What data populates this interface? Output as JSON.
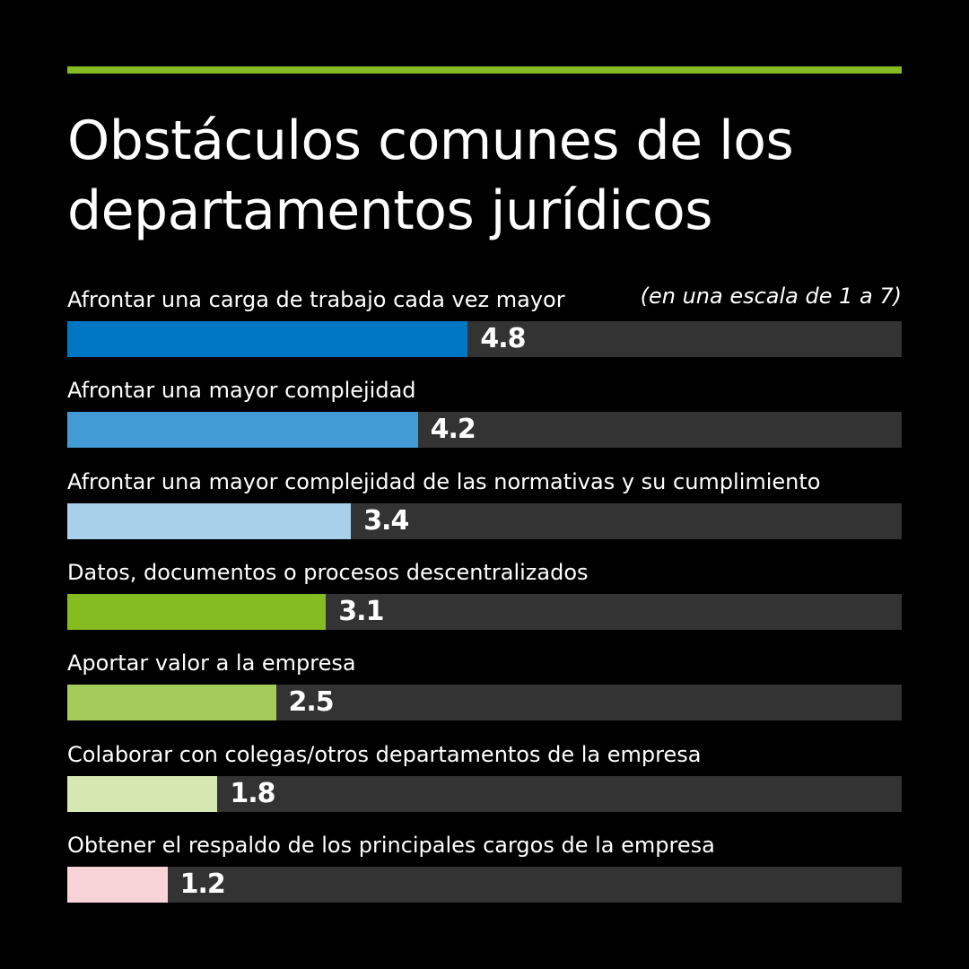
{
  "accent": "#85bc22",
  "title": "Obstáculos comunes de los departamentos jurídicos",
  "title_lines": [
    "Obstáculos comunes de los",
    "departamentos jurídicos"
  ],
  "note": "(en una escala de 1 a 7)",
  "chart_data": {
    "type": "bar",
    "orientation": "horizontal",
    "title": "Obstáculos comunes de los departamentos jurídicos",
    "subtitle": "(en una escala de 1 a 7)",
    "xlim": [
      0,
      10
    ],
    "categories": [
      "Afrontar una carga de trabajo cada vez mayor",
      "Afrontar una mayor complejidad",
      "Afrontar una mayor complejidad de las normativas y su cumplimiento",
      "Datos, documentos o procesos descentralizados",
      "Aportar valor a la empresa",
      "Colaborar con colegas/otros departamentos de la empresa",
      "Obtener el respaldo de los principales cargos de la empresa"
    ],
    "values": [
      4.8,
      4.2,
      3.4,
      3.1,
      2.5,
      1.8,
      1.2
    ],
    "labels": [
      "4.8",
      "4.2",
      "3.4",
      "3.1",
      "2.5",
      "1.8",
      "1.2"
    ],
    "colors": [
      "#0077c2",
      "#429bd4",
      "#a8d0ea",
      "#85bc22",
      "#a3cc5a",
      "#d5e8b1",
      "#f8d3d7"
    ],
    "track_color": "#333333"
  }
}
